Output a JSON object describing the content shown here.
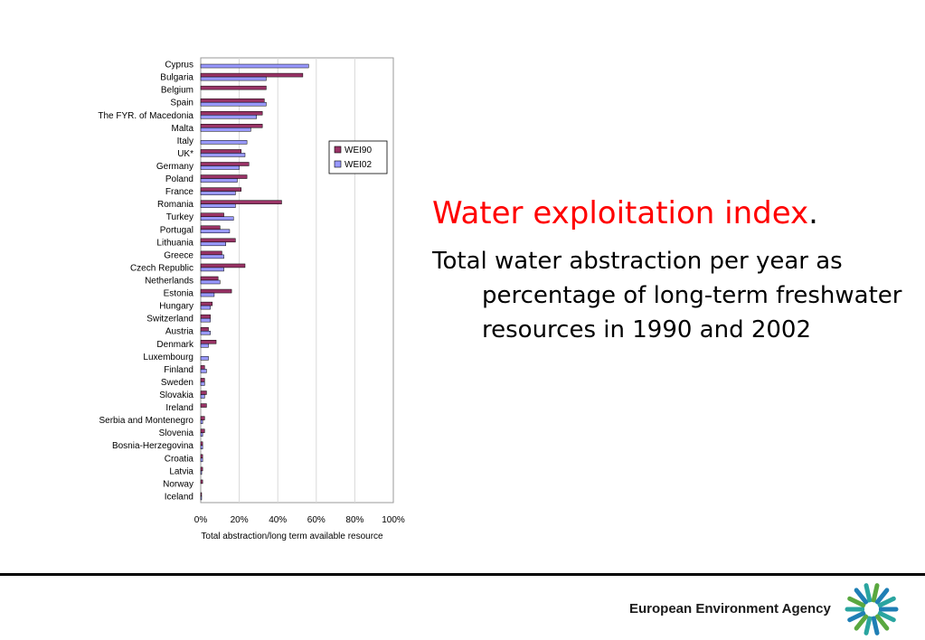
{
  "slide": {
    "title": "Water exploitation index",
    "title_suffix": ".",
    "description": "Total water abstraction per year as percentage of long-term freshwater resources in 1990 and 2002"
  },
  "footer": {
    "agency": "European Environment Agency",
    "logo_icon": "eea-logo-icon"
  },
  "colors": {
    "wei90": "#993366",
    "wei02": "#9999ff",
    "title": "#ff0000"
  },
  "chart_data": {
    "type": "bar",
    "orientation": "horizontal",
    "title": "",
    "xlabel": "Total abstraction/long term available resource",
    "ylabel": "",
    "xlim": [
      0,
      100
    ],
    "x_ticks": [
      "0%",
      "20%",
      "40%",
      "60%",
      "80%",
      "100%"
    ],
    "grid": true,
    "legend_position": "top-right",
    "categories": [
      "Cyprus",
      "Bulgaria",
      "Belgium",
      "Spain",
      "The FYR. of  Macedonia",
      "Malta",
      "Italy",
      "UK*",
      "Germany",
      "Poland",
      "France",
      "Romania",
      "Turkey",
      "Portugal",
      "Lithuania",
      "Greece",
      "Czech Republic",
      "Netherlands",
      "Estonia",
      "Hungary",
      "Switzerland",
      "Austria",
      "Denmark",
      "Luxembourg",
      "Finland",
      "Sweden",
      "Slovakia",
      "Ireland",
      "Serbia and Montenegro",
      "Slovenia",
      "Bosnia-Herzegovina",
      "Croatia",
      "Latvia",
      "Norway",
      "Iceland"
    ],
    "series": [
      {
        "name": "WEI90",
        "color": "#993366",
        "values": [
          null,
          53,
          34,
          33,
          32,
          32,
          null,
          21,
          25,
          24,
          21,
          42,
          12,
          10,
          18,
          11,
          23,
          9,
          16,
          6,
          5,
          4,
          8,
          null,
          2,
          2,
          3,
          3,
          2,
          2,
          1,
          1,
          1,
          1,
          0.3
        ]
      },
      {
        "name": "WEI02",
        "color": "#9999ff",
        "values": [
          56,
          34,
          null,
          34,
          29,
          26,
          24,
          23,
          20,
          19,
          18,
          18,
          17,
          15,
          13,
          12,
          12,
          10,
          7,
          5,
          5,
          5,
          4,
          4,
          3,
          2,
          2,
          null,
          1,
          1,
          1,
          1,
          0.5,
          null,
          0.2
        ]
      }
    ]
  }
}
